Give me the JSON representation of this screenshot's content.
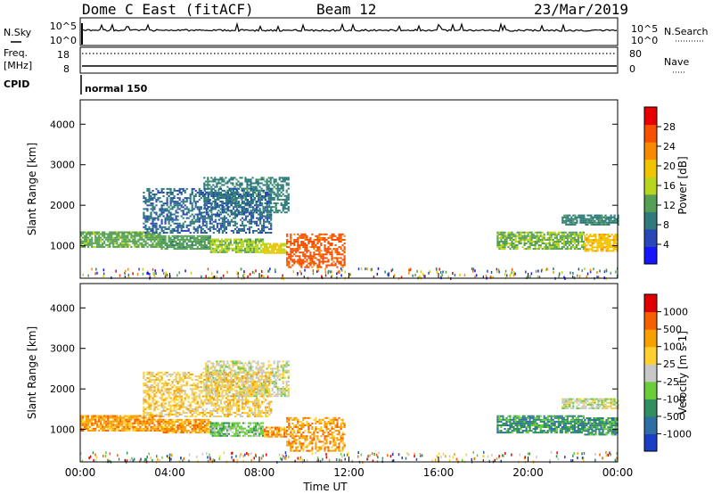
{
  "header": {
    "station": "Dome C East (fitACF)",
    "beam": "Beam 12",
    "date": "23/Mar/2019"
  },
  "top_panels": {
    "nsky_label": "N.Sky",
    "nsearch_label": "N.Search",
    "count_ticks_left": [
      "10^5",
      "10^0"
    ],
    "count_ticks_right": [
      "10^5",
      "10^0"
    ],
    "freq_label": "Freq.",
    "freq_unit": "[MHz]",
    "freq_ticks": [
      "18",
      "8"
    ],
    "nave_label": "Nave",
    "nave_ticks": [
      "80",
      "0"
    ],
    "cpid_label": "CPID",
    "cpid_value": "normal 150"
  },
  "chart_data": [
    {
      "type": "heatmap",
      "name": "power-panel",
      "ylabel": "Slant Range [km]",
      "ylim": [
        200,
        4600
      ],
      "yticks": [
        1000,
        2000,
        3000,
        4000
      ],
      "xlim": [
        0,
        24
      ],
      "colorbar": {
        "label": "Power [dB]",
        "ticks": [
          "28",
          "24",
          "20",
          "16",
          "12",
          "8",
          "4"
        ],
        "range": [
          0,
          32
        ],
        "colors": [
          "#1515ff",
          "#2a47b8",
          "#2f7a7a",
          "#55a055",
          "#b7d61d",
          "#f2c400",
          "#f78a00",
          "#f65000",
          "#e80000"
        ]
      },
      "regions": [
        {
          "t": [
            0,
            3.6
          ],
          "r": [
            950,
            1350
          ],
          "level": 12
        },
        {
          "t": [
            3.6,
            5.8
          ],
          "r": [
            900,
            1250
          ],
          "level": 11
        },
        {
          "t": [
            5.8,
            8.2
          ],
          "r": [
            820,
            1150
          ],
          "level": 14
        },
        {
          "t": [
            8.2,
            9.2
          ],
          "r": [
            800,
            1050
          ],
          "level": 18
        },
        {
          "t": [
            9.2,
            11.8
          ],
          "r": [
            450,
            1300
          ],
          "level": 27
        },
        {
          "t": [
            18.6,
            22.5
          ],
          "r": [
            900,
            1350
          ],
          "level": 13
        },
        {
          "t": [
            22.5,
            24
          ],
          "r": [
            850,
            1300
          ],
          "level": 20
        },
        {
          "t": [
            5.5,
            9.3
          ],
          "r": [
            1800,
            2700
          ],
          "level": 8
        },
        {
          "t": [
            2.8,
            8.5
          ],
          "r": [
            1300,
            2400
          ],
          "level": 6
        },
        {
          "t": [
            21.5,
            24
          ],
          "r": [
            1500,
            1750
          ],
          "level": 8
        }
      ]
    },
    {
      "type": "heatmap",
      "name": "velocity-panel",
      "ylabel": "Slant Range [km]",
      "ylim": [
        200,
        4600
      ],
      "yticks": [
        1000,
        2000,
        3000,
        4000
      ],
      "xlim": [
        0,
        24
      ],
      "xticks": [
        "00:00",
        "04:00",
        "08:00",
        "12:00",
        "16:00",
        "20:00",
        "00:00"
      ],
      "xlabel": "Time UT",
      "colorbar": {
        "label": "Velocity [m s-1]",
        "ticks": [
          "1000",
          "500",
          "100",
          "25",
          "-25",
          "-100",
          "-500",
          "-1000"
        ],
        "colors": [
          "#1b3fc4",
          "#2d6fa3",
          "#2f8f5f",
          "#6acd3a",
          "#c8c8c8",
          "#ffd030",
          "#f7a000",
          "#f66000",
          "#e00000"
        ]
      },
      "regions": [
        {
          "t": [
            0,
            3.6
          ],
          "r": [
            950,
            1350
          ],
          "level": 6
        },
        {
          "t": [
            3.6,
            5.8
          ],
          "r": [
            900,
            1250
          ],
          "level": 6
        },
        {
          "t": [
            5.8,
            8.2
          ],
          "r": [
            820,
            1150
          ],
          "level": 3
        },
        {
          "t": [
            8.2,
            9.2
          ],
          "r": [
            800,
            1050
          ],
          "level": 6
        },
        {
          "t": [
            9.2,
            11.8
          ],
          "r": [
            450,
            1300
          ],
          "level": 6
        },
        {
          "t": [
            18.6,
            22.5
          ],
          "r": [
            900,
            1350
          ],
          "level": 2
        },
        {
          "t": [
            22.5,
            24
          ],
          "r": [
            850,
            1300
          ],
          "level": 2
        },
        {
          "t": [
            5.5,
            9.3
          ],
          "r": [
            1800,
            2700
          ],
          "level": 4
        },
        {
          "t": [
            2.8,
            8.5
          ],
          "r": [
            1300,
            2400
          ],
          "level": 5
        },
        {
          "t": [
            21.5,
            24
          ],
          "r": [
            1500,
            1750
          ],
          "level": 4
        }
      ]
    }
  ]
}
